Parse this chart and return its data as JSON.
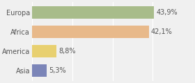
{
  "categories": [
    "Europa",
    "Africa",
    "America",
    "Asia"
  ],
  "values": [
    43.9,
    42.1,
    8.8,
    5.3
  ],
  "labels": [
    "43,9%",
    "42,1%",
    "8,8%",
    "5,3%"
  ],
  "bar_colors": [
    "#a8bc8a",
    "#e8b98a",
    "#e8d070",
    "#7b85b8"
  ],
  "background_color": "#f0f0f0",
  "xlim": [
    0,
    58
  ],
  "bar_height": 0.65,
  "label_fontsize": 7.0,
  "tick_fontsize": 7.0,
  "label_color": "#555555",
  "tick_color": "#555555"
}
